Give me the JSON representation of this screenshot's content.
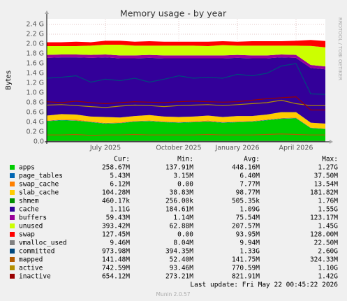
{
  "chart_data": {
    "type": "area",
    "title": "Memory usage - by year",
    "y_label": "Bytes",
    "watermark": "RRDTOOL / TOBI OETIKER",
    "last_update": "Last update: Fri May 22 00:45:22 2026",
    "footer": "Munin 2.0.57",
    "grid": true,
    "ylim": [
      0,
      2.4
    ],
    "yticks": [
      {
        "value": 0,
        "label": "0.0"
      },
      {
        "value": 0.2,
        "label": "0.2 G"
      },
      {
        "value": 0.4,
        "label": "0.4 G"
      },
      {
        "value": 0.6,
        "label": "0.6 G"
      },
      {
        "value": 0.8,
        "label": "0.8 G"
      },
      {
        "value": 1.0,
        "label": "1.0 G"
      },
      {
        "value": 1.2,
        "label": "1.2 G"
      },
      {
        "value": 1.4,
        "label": "1.4 G"
      },
      {
        "value": 1.6,
        "label": "1.6 G"
      },
      {
        "value": 1.8,
        "label": "1.8 G"
      },
      {
        "value": 2.0,
        "label": "2.0 G"
      },
      {
        "value": 2.2,
        "label": "2.2 G"
      },
      {
        "value": 2.4,
        "label": "2.4 G"
      }
    ],
    "categories": [
      null,
      null,
      null,
      null,
      "July 2025",
      null,
      null,
      null,
      null,
      "October 2025",
      null,
      null,
      null,
      "January 2026",
      null,
      null,
      null,
      "April 2026",
      null,
      null
    ],
    "legend_columns": [
      "Cur:",
      "Min:",
      "Avg:",
      "Max:"
    ],
    "series": [
      {
        "name": "apps",
        "color": "#00cc00",
        "stack": true,
        "stats": [
          "258.67M",
          "137.91M",
          "448.16M",
          "1.27G"
        ],
        "values": [
          0.42,
          0.44,
          0.43,
          0.4,
          0.37,
          0.38,
          0.41,
          0.42,
          0.4,
          0.39,
          0.4,
          0.41,
          0.39,
          0.4,
          0.41,
          0.44,
          0.47,
          0.48,
          0.28,
          0.26
        ]
      },
      {
        "name": "page_tables",
        "color": "#0066b3",
        "stack": true,
        "stats": [
          "5.43M",
          "3.15M",
          "6.40M",
          "37.50M"
        ],
        "values": [
          0.006,
          0.006,
          0.006,
          0.006,
          0.006,
          0.006,
          0.006,
          0.006,
          0.006,
          0.006,
          0.006,
          0.006,
          0.006,
          0.006,
          0.006,
          0.006,
          0.006,
          0.006,
          0.005,
          0.005
        ]
      },
      {
        "name": "swap_cache",
        "color": "#ff8000",
        "stack": true,
        "stats": [
          "6.12M",
          "0.00",
          "7.77M",
          "13.54M"
        ],
        "values": [
          0.01,
          0.01,
          0.02,
          0.01,
          0.01,
          0.01,
          0.01,
          0.01,
          0.01,
          0.01,
          0.01,
          0.02,
          0.01,
          0.01,
          0.01,
          0.01,
          0.01,
          0.01,
          0.006,
          0.006
        ]
      },
      {
        "name": "slab_cache",
        "color": "#ffcc00",
        "stack": true,
        "stats": [
          "104.28M",
          "38.83M",
          "98.77M",
          "181.82M"
        ],
        "values": [
          0.1,
          0.11,
          0.1,
          0.1,
          0.12,
          0.1,
          0.1,
          0.11,
          0.1,
          0.1,
          0.1,
          0.1,
          0.1,
          0.11,
          0.1,
          0.1,
          0.12,
          0.11,
          0.1,
          0.1
        ]
      },
      {
        "name": "shmem",
        "color": "#008f00",
        "stack": true,
        "stats": [
          "460.17k",
          "256.00k",
          "505.35k",
          "1.76M"
        ],
        "values": [
          0.0005,
          0.0005,
          0.0005,
          0.0005,
          0.0005,
          0.0005,
          0.0005,
          0.0005,
          0.0005,
          0.0005,
          0.0005,
          0.0005,
          0.0005,
          0.0005,
          0.0005,
          0.0005,
          0.0005,
          0.0005,
          0.0005,
          0.0005
        ]
      },
      {
        "name": "cache",
        "color": "#330099",
        "stack": true,
        "stats": [
          "1.11G",
          "184.61M",
          "1.09G",
          "1.55G"
        ],
        "values": [
          1.18,
          1.16,
          1.17,
          1.2,
          1.22,
          1.21,
          1.18,
          1.17,
          1.19,
          1.2,
          1.19,
          1.17,
          1.2,
          1.19,
          1.18,
          1.15,
          1.12,
          1.11,
          1.12,
          1.11
        ]
      },
      {
        "name": "buffers",
        "color": "#990099",
        "stack": true,
        "stats": [
          "59.43M",
          "1.14M",
          "75.54M",
          "123.17M"
        ],
        "values": [
          0.06,
          0.06,
          0.06,
          0.06,
          0.06,
          0.06,
          0.06,
          0.06,
          0.06,
          0.06,
          0.06,
          0.06,
          0.06,
          0.06,
          0.06,
          0.06,
          0.06,
          0.06,
          0.06,
          0.06
        ]
      },
      {
        "name": "unused",
        "color": "#ccff00",
        "stack": true,
        "stats": [
          "393.42M",
          "62.88M",
          "207.57M",
          "1.45G"
        ],
        "values": [
          0.18,
          0.17,
          0.17,
          0.19,
          0.2,
          0.22,
          0.2,
          0.19,
          0.2,
          0.2,
          0.2,
          0.19,
          0.21,
          0.19,
          0.2,
          0.2,
          0.18,
          0.19,
          0.39,
          0.39
        ]
      },
      {
        "name": "swap",
        "color": "#ff0000",
        "stack": true,
        "stats": [
          "127.45M",
          "0.00",
          "93.95M",
          "128.00M"
        ],
        "values": [
          0.08,
          0.08,
          0.09,
          0.07,
          0.08,
          0.08,
          0.08,
          0.09,
          0.08,
          0.08,
          0.08,
          0.09,
          0.08,
          0.08,
          0.09,
          0.09,
          0.09,
          0.1,
          0.12,
          0.13
        ]
      },
      {
        "name": "vmalloc_used",
        "color": "#808080",
        "stack": false,
        "stats": [
          "9.46M",
          "8.04M",
          "9.94M",
          "22.50M"
        ],
        "values": [
          0.01,
          0.01,
          0.01,
          0.01,
          0.01,
          0.01,
          0.01,
          0.01,
          0.01,
          0.01,
          0.01,
          0.01,
          0.01,
          0.01,
          0.01,
          0.01,
          0.01,
          0.01,
          0.01,
          0.01
        ]
      },
      {
        "name": "committed",
        "color": "#00487d",
        "stack": false,
        "stats": [
          "973.98M",
          "394.35M",
          "1.33G",
          "2.60G"
        ],
        "values": [
          1.3,
          1.32,
          1.35,
          1.22,
          1.28,
          1.25,
          1.3,
          1.22,
          1.28,
          1.35,
          1.3,
          1.32,
          1.3,
          1.38,
          1.35,
          1.4,
          1.55,
          1.6,
          0.98,
          0.97
        ]
      },
      {
        "name": "mapped",
        "color": "#b35a00",
        "stack": false,
        "stats": [
          "141.48M",
          "52.40M",
          "141.75M",
          "324.33M"
        ],
        "values": [
          0.14,
          0.14,
          0.15,
          0.13,
          0.14,
          0.14,
          0.15,
          0.14,
          0.14,
          0.14,
          0.14,
          0.15,
          0.14,
          0.14,
          0.14,
          0.15,
          0.16,
          0.15,
          0.14,
          0.14
        ]
      },
      {
        "name": "active",
        "color": "#b38f00",
        "stack": false,
        "stats": [
          "742.59M",
          "93.46M",
          "770.59M",
          "1.10G"
        ],
        "values": [
          0.75,
          0.76,
          0.74,
          0.72,
          0.7,
          0.73,
          0.75,
          0.74,
          0.72,
          0.74,
          0.75,
          0.76,
          0.74,
          0.76,
          0.78,
          0.8,
          0.85,
          0.78,
          0.74,
          0.74
        ]
      },
      {
        "name": "inactive",
        "color": "#990000",
        "stack": false,
        "stats": [
          "654.12M",
          "273.21M",
          "821.91M",
          "1.42G"
        ],
        "values": [
          0.82,
          0.8,
          0.83,
          0.8,
          0.78,
          0.8,
          0.82,
          0.81,
          0.8,
          0.82,
          0.83,
          0.82,
          0.81,
          0.82,
          0.85,
          0.88,
          0.9,
          0.92,
          0.65,
          0.65
        ]
      }
    ]
  }
}
